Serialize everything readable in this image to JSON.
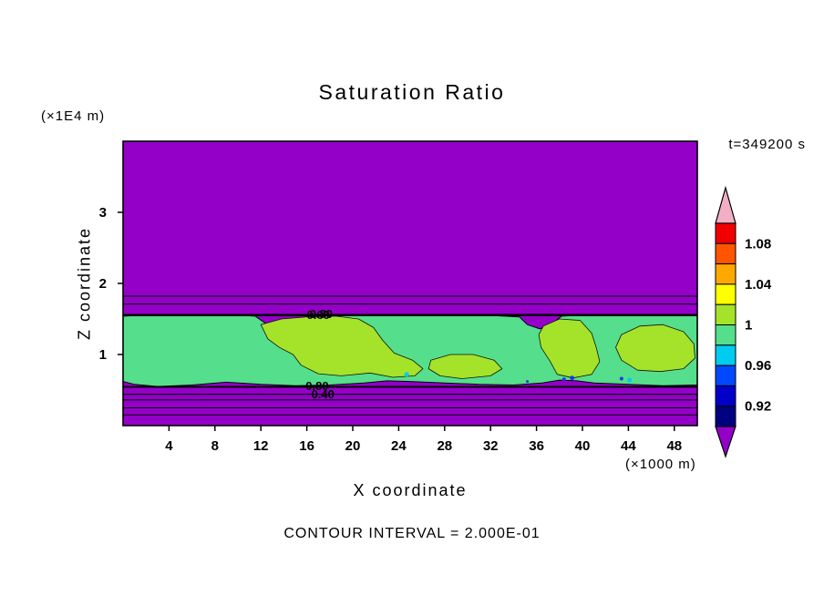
{
  "chart_data": {
    "type": "heatmap",
    "variant": "filled_contour_plot",
    "title": "Saturation Ratio",
    "time_label": "t=349200 s",
    "xlabel": "X coordinate",
    "x_units_label": "(×1000 m)",
    "ylabel": "Z coordinate",
    "y_units_label": "(×1E4 m)",
    "footer_label": "CONTOUR INTERVAL = 2.000E-01",
    "xlim": [
      0,
      50
    ],
    "ylim": [
      0,
      4
    ],
    "x_ticks": [
      4,
      8,
      12,
      16,
      20,
      24,
      28,
      32,
      36,
      40,
      44,
      48
    ],
    "y_ticks": [
      1,
      2,
      3
    ],
    "grid": false,
    "field": {
      "background_color": "#9400C8",
      "band_color": "#55DE8B",
      "patch_color": "#A4E32A",
      "band_top": [
        [
          0,
          1.54
        ],
        [
          3,
          1.56
        ],
        [
          6,
          1.55
        ],
        [
          9,
          1.56
        ],
        [
          11.5,
          1.54
        ],
        [
          12.4,
          1.44
        ],
        [
          13.1,
          1.32
        ],
        [
          14.2,
          1.34
        ],
        [
          15,
          1.48
        ],
        [
          16.5,
          1.55
        ],
        [
          20,
          1.56
        ],
        [
          24,
          1.55
        ],
        [
          28,
          1.56
        ],
        [
          32,
          1.55
        ],
        [
          34.5,
          1.53
        ],
        [
          35.2,
          1.42
        ],
        [
          36.3,
          1.36
        ],
        [
          37.4,
          1.44
        ],
        [
          38.2,
          1.54
        ],
        [
          41,
          1.56
        ],
        [
          44,
          1.55
        ],
        [
          47,
          1.56
        ],
        [
          50,
          1.55
        ]
      ],
      "band_bottom": [
        [
          50,
          0.57
        ],
        [
          47,
          0.56
        ],
        [
          44,
          0.58
        ],
        [
          41,
          0.6
        ],
        [
          39.5,
          0.63
        ],
        [
          38,
          0.64
        ],
        [
          36.5,
          0.6
        ],
        [
          34,
          0.57
        ],
        [
          31,
          0.58
        ],
        [
          28,
          0.6
        ],
        [
          25,
          0.62
        ],
        [
          23,
          0.63
        ],
        [
          21,
          0.6
        ],
        [
          18,
          0.57
        ],
        [
          15,
          0.56
        ],
        [
          12,
          0.58
        ],
        [
          9,
          0.61
        ],
        [
          6,
          0.57
        ],
        [
          3,
          0.55
        ],
        [
          1,
          0.58
        ],
        [
          0,
          0.62
        ]
      ],
      "patches": [
        [
          [
            12.0,
            1.42
          ],
          [
            13.8,
            1.5
          ],
          [
            16.0,
            1.53
          ],
          [
            18.5,
            1.54
          ],
          [
            20.5,
            1.5
          ],
          [
            21.8,
            1.38
          ],
          [
            22.6,
            1.2
          ],
          [
            23.6,
            1.02
          ],
          [
            25.2,
            0.92
          ],
          [
            26.1,
            0.8
          ],
          [
            25.4,
            0.7
          ],
          [
            23.5,
            0.68
          ],
          [
            21.5,
            0.74
          ],
          [
            19.0,
            0.7
          ],
          [
            17.0,
            0.73
          ],
          [
            15.5,
            0.85
          ],
          [
            14.8,
            1.0
          ],
          [
            13.6,
            1.1
          ],
          [
            12.6,
            1.22
          ]
        ],
        [
          [
            26.8,
            0.92
          ],
          [
            28.5,
            1.0
          ],
          [
            30.5,
            1.0
          ],
          [
            32.3,
            0.92
          ],
          [
            33.0,
            0.8
          ],
          [
            32.0,
            0.7
          ],
          [
            29.5,
            0.66
          ],
          [
            27.6,
            0.7
          ],
          [
            26.6,
            0.8
          ]
        ],
        [
          [
            36.6,
            1.4
          ],
          [
            38.0,
            1.5
          ],
          [
            39.8,
            1.48
          ],
          [
            40.8,
            1.3
          ],
          [
            41.2,
            1.1
          ],
          [
            41.5,
            0.9
          ],
          [
            40.8,
            0.72
          ],
          [
            39.2,
            0.67
          ],
          [
            37.8,
            0.72
          ],
          [
            37.2,
            0.9
          ],
          [
            36.4,
            1.1
          ],
          [
            36.2,
            1.28
          ]
        ],
        [
          [
            43.4,
            1.28
          ],
          [
            45.0,
            1.4
          ],
          [
            47.0,
            1.42
          ],
          [
            48.8,
            1.32
          ],
          [
            49.7,
            1.15
          ],
          [
            49.8,
            0.95
          ],
          [
            48.8,
            0.8
          ],
          [
            46.8,
            0.76
          ],
          [
            44.8,
            0.78
          ],
          [
            43.4,
            0.92
          ],
          [
            42.9,
            1.1
          ]
        ]
      ],
      "specks": [
        {
          "x": 24.7,
          "z": 0.72,
          "r": 2.5,
          "color": "#00CCF0"
        },
        {
          "x": 38.4,
          "z": 0.65,
          "r": 2,
          "color": "#2036E8"
        },
        {
          "x": 39.1,
          "z": 0.67,
          "r": 2.5,
          "color": "#2036E8"
        },
        {
          "x": 43.4,
          "z": 0.66,
          "r": 2,
          "color": "#2036E8"
        },
        {
          "x": 44.1,
          "z": 0.64,
          "r": 2.5,
          "color": "#00CCF0"
        },
        {
          "x": 35.2,
          "z": 0.62,
          "r": 1.5,
          "color": "#2036E8"
        }
      ],
      "contour_lines": [
        {
          "z": 1.82,
          "width": 1
        },
        {
          "z": 1.71,
          "width": 1
        },
        {
          "z": 1.555,
          "width": 2.5
        },
        {
          "z": 0.545,
          "width": 2
        },
        {
          "z": 0.44,
          "width": 1.2
        },
        {
          "z": 0.36,
          "width": 1
        },
        {
          "z": 0.25,
          "width": 1
        },
        {
          "z": 0.15,
          "width": 1
        }
      ],
      "contour_labels": [
        {
          "text": "0.60",
          "x": 17.0,
          "z": 1.555
        },
        {
          "text": "0.80",
          "x": 17.25,
          "z": 1.57
        },
        {
          "text": "0.80",
          "x": 16.9,
          "z": 0.56
        },
        {
          "text": "0.40",
          "x": 17.4,
          "z": 0.44
        }
      ]
    },
    "colorbar": {
      "cells_top_to_bottom": [
        "#F00000",
        "#FF5400",
        "#FFA800",
        "#FFFF00",
        "#A4E32A",
        "#55DE8B",
        "#00CCF0",
        "#0048FF",
        "#0000C8",
        "#000080"
      ],
      "top_arrow_color": "#F2AEC4",
      "bottom_arrow_color": "#9400C8",
      "tick_labels": [
        {
          "label": "1.08",
          "boundary": 1
        },
        {
          "label": "1.04",
          "boundary": 3
        },
        {
          "label": "1",
          "boundary": 5
        },
        {
          "label": "0.96",
          "boundary": 7
        },
        {
          "label": "0.92",
          "boundary": 9
        }
      ]
    }
  }
}
